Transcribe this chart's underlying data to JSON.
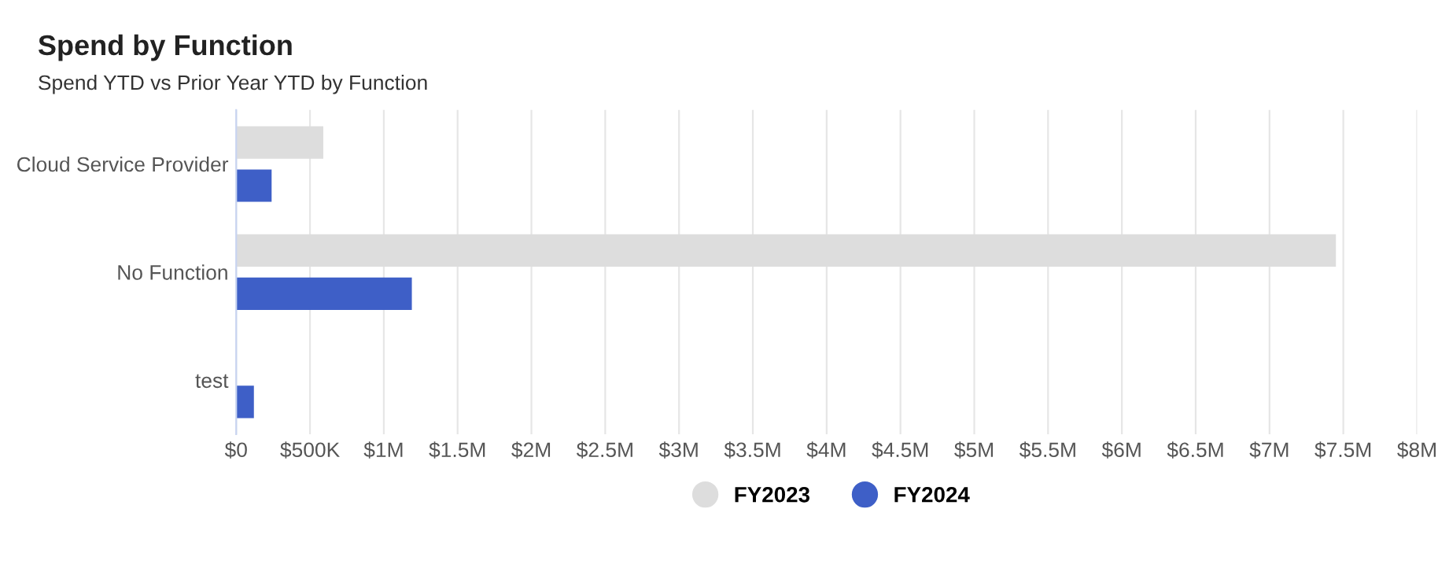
{
  "chart_data": {
    "type": "bar",
    "orientation": "horizontal",
    "title": "Spend by Function",
    "subtitle": "Spend YTD vs Prior Year YTD by Function",
    "categories": [
      "Cloud Service Provider",
      "No Function",
      "test"
    ],
    "series": [
      {
        "name": "FY2023",
        "color": "#dddddd",
        "values": [
          590000,
          7450000,
          null
        ]
      },
      {
        "name": "FY2024",
        "color": "#3e5fc7",
        "values": [
          240000,
          1190000,
          120000
        ]
      }
    ],
    "xlim": [
      0,
      8000000
    ],
    "xticks": [
      {
        "value": 0,
        "label": "$0"
      },
      {
        "value": 500000,
        "label": "$500K"
      },
      {
        "value": 1000000,
        "label": "$1M"
      },
      {
        "value": 1500000,
        "label": "$1.5M"
      },
      {
        "value": 2000000,
        "label": "$2M"
      },
      {
        "value": 2500000,
        "label": "$2.5M"
      },
      {
        "value": 3000000,
        "label": "$3M"
      },
      {
        "value": 3500000,
        "label": "$3.5M"
      },
      {
        "value": 4000000,
        "label": "$4M"
      },
      {
        "value": 4500000,
        "label": "$4.5M"
      },
      {
        "value": 5000000,
        "label": "$5M"
      },
      {
        "value": 5500000,
        "label": "$5.5M"
      },
      {
        "value": 6000000,
        "label": "$6M"
      },
      {
        "value": 6500000,
        "label": "$6.5M"
      },
      {
        "value": 7000000,
        "label": "$7M"
      },
      {
        "value": 7500000,
        "label": "$7.5M"
      },
      {
        "value": 8000000,
        "label": "$8M"
      }
    ],
    "grid": "x",
    "legend": "bottom"
  }
}
